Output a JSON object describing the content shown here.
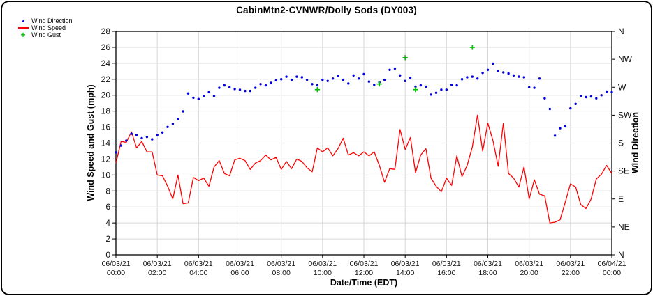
{
  "legend": {
    "position": "top-left",
    "items": [
      {
        "label": "Wind Direction",
        "marker": "dot",
        "color": "#0000e0"
      },
      {
        "label": "Wind Speed",
        "marker": "line",
        "color": "#ff0000"
      },
      {
        "label": "Wind Gust",
        "marker": "plus",
        "color": "#00c000"
      }
    ]
  },
  "chart_data": {
    "type": "line",
    "title": "CabinMtn2-CVNWR/Dolly Sods (DY003)",
    "xlabel": "Date/Time (EDT)",
    "ylabel_left": "Wind Speed and Gust (mph)",
    "ylabel_right": "Wind Direction",
    "grid": true,
    "ylim_left": [
      0,
      28
    ],
    "ytick_step": 2,
    "y_ticks_left": [
      0,
      2,
      4,
      6,
      8,
      10,
      12,
      14,
      16,
      18,
      20,
      22,
      24,
      26,
      28
    ],
    "right_axis_ticks": [
      {
        "label": "N",
        "deg": 360
      },
      {
        "label": "NW",
        "deg": 315
      },
      {
        "label": "W",
        "deg": 270
      },
      {
        "label": "SW",
        "deg": 225
      },
      {
        "label": "S",
        "deg": 180
      },
      {
        "label": "SE",
        "deg": 135
      },
      {
        "label": "E",
        "deg": 90
      },
      {
        "label": "NE",
        "deg": 45
      },
      {
        "label": "N",
        "deg": 0
      }
    ],
    "x_ticks": [
      {
        "date": "06/03/21",
        "time": "00:00"
      },
      {
        "date": "06/03/21",
        "time": "02:00"
      },
      {
        "date": "06/03/21",
        "time": "04:00"
      },
      {
        "date": "06/03/21",
        "time": "06:00"
      },
      {
        "date": "06/03/21",
        "time": "08:00"
      },
      {
        "date": "06/03/21",
        "time": "10:00"
      },
      {
        "date": "06/03/21",
        "time": "12:00"
      },
      {
        "date": "06/03/21",
        "time": "14:00"
      },
      {
        "date": "06/03/21",
        "time": "16:00"
      },
      {
        "date": "06/03/21",
        "time": "18:00"
      },
      {
        "date": "06/03/21",
        "time": "20:00"
      },
      {
        "date": "06/03/21",
        "time": "22:00"
      },
      {
        "date": "06/04/21",
        "time": "00:00"
      }
    ],
    "x_range_hours": [
      0,
      24
    ],
    "sample_interval_hours": 0.25,
    "series": [
      {
        "name": "Wind Speed",
        "type": "line",
        "units": "mph",
        "color": "#ff0000",
        "values": [
          11.5,
          14.2,
          14.1,
          15.4,
          13.4,
          14.2,
          12.9,
          12.9,
          10.0,
          9.9,
          8.6,
          7.0,
          10.0,
          6.4,
          6.5,
          9.7,
          9.3,
          9.6,
          8.6,
          11.0,
          11.8,
          10.2,
          9.9,
          11.9,
          12.1,
          11.8,
          10.7,
          11.5,
          11.8,
          12.5,
          11.9,
          12.2,
          10.7,
          11.7,
          10.8,
          12.0,
          11.7,
          10.9,
          10.4,
          13.4,
          12.9,
          13.4,
          12.4,
          13.3,
          14.6,
          12.5,
          12.8,
          12.4,
          12.9,
          12.4,
          12.9,
          11.2,
          9.1,
          10.8,
          10.7,
          15.7,
          13.2,
          14.7,
          10.3,
          12.5,
          13.3,
          9.6,
          8.6,
          7.9,
          9.6,
          8.7,
          12.4,
          9.8,
          11.2,
          13.5,
          17.5,
          13.0,
          16.5,
          14.3,
          11.1,
          16.5,
          10.2,
          9.6,
          8.5,
          11.0,
          7.0,
          9.4,
          7.6,
          7.4,
          4.0,
          4.1,
          4.4,
          6.6,
          8.9,
          8.5,
          6.3,
          5.8,
          7.0,
          9.5,
          10.1,
          11.2,
          10.2
        ]
      },
      {
        "name": "Wind Direction",
        "type": "scatter",
        "units": "deg",
        "color": "#0000e0",
        "values": [
          165,
          176,
          184,
          195,
          193,
          188,
          190,
          186,
          193,
          197,
          206,
          211,
          219,
          231,
          260,
          253,
          251,
          256,
          262,
          256,
          269,
          273,
          270,
          267,
          266,
          264,
          264,
          269,
          275,
          273,
          277,
          281,
          283,
          287,
          282,
          287,
          286,
          282,
          275,
          273,
          282,
          280,
          284,
          288,
          282,
          276,
          289,
          284,
          291,
          279,
          274,
          278,
          282,
          298,
          300,
          289,
          280,
          285,
          271,
          273,
          271,
          258,
          261,
          266,
          266,
          274,
          273,
          283,
          286,
          287,
          284,
          293,
          298,
          308,
          296,
          294,
          292,
          289,
          287,
          286,
          270,
          269,
          284,
          252,
          235,
          192,
          204,
          207,
          236,
          243,
          256,
          254,
          255,
          252,
          257,
          263,
          262
        ]
      },
      {
        "name": "Wind Gust",
        "type": "scatter-plus",
        "units": "mph",
        "color": "#00c000",
        "points": [
          {
            "hour": 9.75,
            "mph": 20.7
          },
          {
            "hour": 12.75,
            "mph": 21.4
          },
          {
            "hour": 14.0,
            "mph": 24.7
          },
          {
            "hour": 14.5,
            "mph": 20.7
          },
          {
            "hour": 17.25,
            "mph": 26.0
          }
        ]
      }
    ]
  },
  "style": {
    "grid_color": "#d6d6d6",
    "axis_color": "#000000"
  }
}
